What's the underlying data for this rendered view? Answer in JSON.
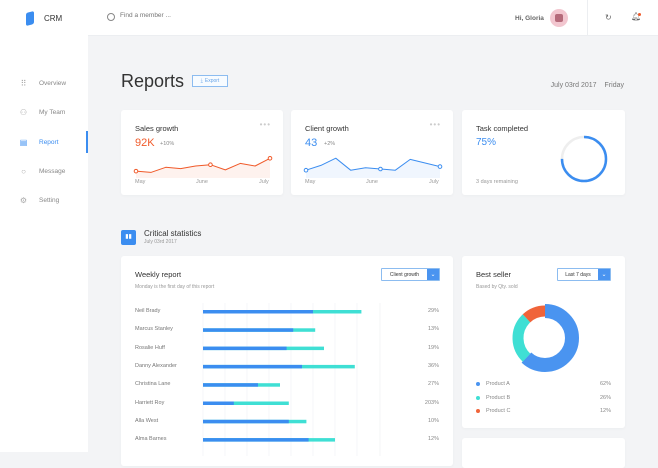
{
  "app": {
    "name": "CRM"
  },
  "sidebar": {
    "items": [
      {
        "label": "Overview",
        "icon": "grid-icon"
      },
      {
        "label": "My Team",
        "icon": "team-icon"
      },
      {
        "label": "Report",
        "icon": "document-icon",
        "active": true
      },
      {
        "label": "Message",
        "icon": "message-icon"
      },
      {
        "label": "Setting",
        "icon": "gear-icon"
      }
    ]
  },
  "header": {
    "search_placeholder": "Find a member ...",
    "greeting": "Hi, Gloria",
    "notification_dot_color": "#f05a2a"
  },
  "page": {
    "title": "Reports",
    "export_label": "Export",
    "date": "July 03rd  2017",
    "weekday": "Friday"
  },
  "cards": {
    "sales": {
      "title": "Sales growth",
      "value": "92K",
      "change": "+10%",
      "color": "#f05a2a",
      "x_labels": [
        "May",
        "June",
        "July"
      ],
      "values": [
        3,
        2,
        6,
        5,
        7,
        8,
        4,
        9,
        7,
        13
      ]
    },
    "client": {
      "title": "Client growth",
      "value": "43",
      "change": "+2%",
      "color": "#3b8df0",
      "x_labels": [
        "May",
        "June",
        "July"
      ],
      "values": [
        4,
        8,
        14,
        4,
        6,
        5,
        4,
        13,
        10,
        7
      ]
    },
    "task": {
      "title": "Task completed",
      "value": "75%",
      "progress": 0.75,
      "remaining": "3 days remaining"
    }
  },
  "critical": {
    "title": "Critical statistics",
    "date": "July 03rd  2017"
  },
  "weekly": {
    "title": "Weekly report",
    "subtitle": "Monday is the first day of this report",
    "filter": "Client growth",
    "rows": [
      {
        "name": "Neil Brady",
        "blue": 5.0,
        "total": 7.2,
        "pct": "29%"
      },
      {
        "name": "Marcus Stanley",
        "blue": 4.1,
        "total": 5.1,
        "pct": "13%"
      },
      {
        "name": "Rosalie Huff",
        "blue": 3.8,
        "total": 5.5,
        "pct": "19%"
      },
      {
        "name": "Danny Alexander",
        "blue": 4.5,
        "total": 6.9,
        "pct": "36%"
      },
      {
        "name": "Christina Lane",
        "blue": 2.5,
        "total": 3.5,
        "pct": "27%"
      },
      {
        "name": "Harriett Roy",
        "blue": 1.4,
        "total": 3.9,
        "pct": "203%"
      },
      {
        "name": "Alla West",
        "blue": 3.9,
        "total": 4.7,
        "pct": "10%"
      },
      {
        "name": "Alma Barnes",
        "blue": 4.8,
        "total": 6.0,
        "pct": "12%"
      }
    ],
    "colors": {
      "primary": "#3b8df0",
      "secondary": "#3fdfd4"
    }
  },
  "best_seller": {
    "title": "Best seller",
    "subtitle": "Based by Qty. sold",
    "filter": "Last 7 days",
    "products": [
      {
        "name": "Product A",
        "pct": "62%",
        "value": 62,
        "color": "#4a94f0"
      },
      {
        "name": "Product B",
        "pct": "26%",
        "value": 26,
        "color": "#3fdfd4"
      },
      {
        "name": "Product C",
        "pct": "12%",
        "value": 12,
        "color": "#f0643a"
      }
    ]
  }
}
